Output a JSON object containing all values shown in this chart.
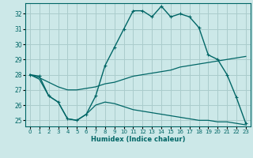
{
  "xlabel": "Humidex (Indice chaleur)",
  "ylabel": "",
  "bg_color": "#cce8e8",
  "grid_color": "#aacccc",
  "line_color": "#006666",
  "xlim": [
    -0.5,
    23.5
  ],
  "ylim": [
    24.6,
    32.7
  ],
  "yticks": [
    25,
    26,
    27,
    28,
    29,
    30,
    31,
    32
  ],
  "xticks": [
    0,
    1,
    2,
    3,
    4,
    5,
    6,
    7,
    8,
    9,
    10,
    11,
    12,
    13,
    14,
    15,
    16,
    17,
    18,
    19,
    20,
    21,
    22,
    23
  ],
  "line1_x": [
    0,
    1,
    2,
    3,
    4,
    5,
    6,
    7,
    8,
    9,
    10,
    11,
    12,
    13,
    14,
    15,
    16,
    17,
    18,
    19,
    20,
    21,
    22,
    23
  ],
  "line1_y": [
    28.0,
    27.9,
    26.6,
    26.2,
    25.1,
    25.0,
    25.4,
    26.6,
    28.6,
    29.8,
    31.0,
    32.2,
    32.2,
    31.8,
    32.5,
    31.8,
    32.0,
    31.8,
    31.1,
    29.3,
    29.0,
    28.0,
    26.5,
    24.8
  ],
  "line2_x": [
    0,
    1,
    2,
    3,
    4,
    5,
    6,
    7,
    8,
    9,
    10,
    11,
    12,
    13,
    14,
    15,
    16,
    17,
    18,
    19,
    20,
    21,
    22,
    23
  ],
  "line2_y": [
    28.0,
    27.8,
    27.5,
    27.2,
    27.0,
    27.0,
    27.1,
    27.2,
    27.4,
    27.5,
    27.7,
    27.9,
    28.0,
    28.1,
    28.2,
    28.3,
    28.5,
    28.6,
    28.7,
    28.8,
    28.9,
    29.0,
    29.1,
    29.2
  ],
  "line3_x": [
    0,
    1,
    2,
    3,
    4,
    5,
    6,
    7,
    8,
    9,
    10,
    11,
    12,
    13,
    14,
    15,
    16,
    17,
    18,
    19,
    20,
    21,
    22,
    23
  ],
  "line3_y": [
    28.0,
    27.7,
    26.6,
    26.2,
    25.1,
    25.0,
    25.4,
    26.0,
    26.2,
    26.1,
    25.9,
    25.7,
    25.6,
    25.5,
    25.4,
    25.3,
    25.2,
    25.1,
    25.0,
    25.0,
    24.9,
    24.9,
    24.8,
    24.7
  ]
}
